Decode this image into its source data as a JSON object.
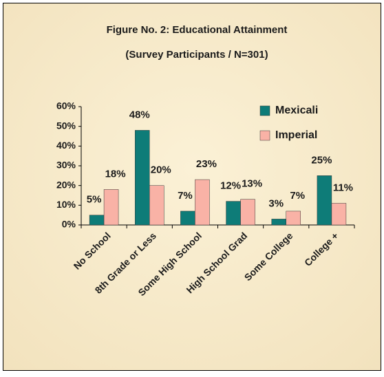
{
  "chart_data": {
    "type": "bar",
    "title": "Figure No. 2:  Educational Attainment",
    "subtitle": "(Survey Participants / N=301)",
    "categories": [
      "No School",
      "8th Grade or Less",
      "Some High School",
      "High School Grad",
      "Some College",
      "College +"
    ],
    "series": [
      {
        "name": "Mexicali",
        "color": "#0e7c78",
        "values": [
          5,
          48,
          7,
          12,
          3,
          25
        ],
        "value_labels": [
          "5%",
          "48%",
          "7%",
          "12%",
          "3%",
          "25%"
        ]
      },
      {
        "name": "Imperial",
        "color": "#f9b2a6",
        "values": [
          18,
          20,
          23,
          13,
          7,
          11
        ],
        "value_labels": [
          "18%",
          "20%",
          "23%",
          "13%",
          "7%",
          "11%"
        ]
      }
    ],
    "ylim": [
      0,
      60
    ],
    "yticks": [
      {
        "value": 0,
        "label": "0%"
      },
      {
        "value": 10,
        "label": "10%"
      },
      {
        "value": 20,
        "label": "20%"
      },
      {
        "value": 30,
        "label": "30%"
      },
      {
        "value": 40,
        "label": "40%"
      },
      {
        "value": 50,
        "label": "50%"
      },
      {
        "value": 60,
        "label": "60%"
      }
    ],
    "grid": false,
    "legend": "upper right"
  }
}
